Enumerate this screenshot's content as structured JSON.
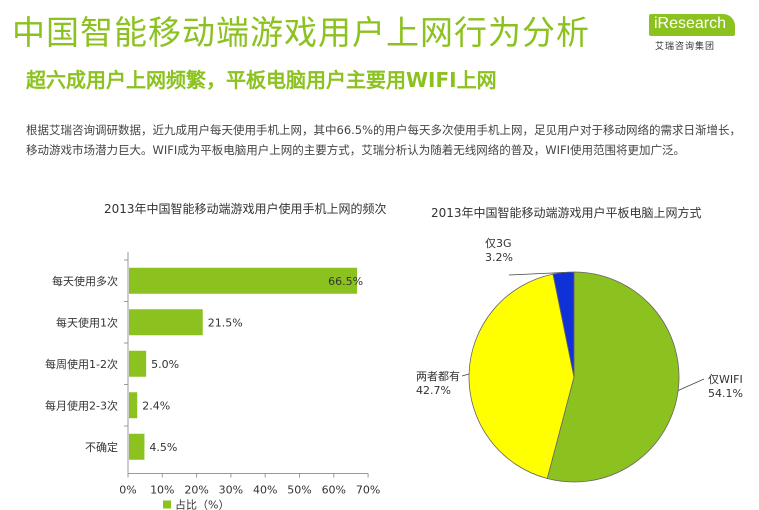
{
  "header": {
    "title": "中国智能移动端游戏用户上网行为分析",
    "subtitle": "超六成用户上网频繁，平板电脑用户主要用WIFI上网",
    "logo_text": "iResearch",
    "logo_sub": "艾瑞咨询集团"
  },
  "description": "根据艾瑞咨询调研数据，近九成用户每天使用手机上网，其中66.5%的用户每天多次使用手机上网，足见用户对于移动网络的需求日渐增长，移动游戏市场潜力巨大。WIFI成为平板电脑用户上网的主要方式，艾瑞分析认为随着无线网络的普及，WIFI使用范围将更加广泛。",
  "colors": {
    "accent": "#8cc21f",
    "yellow": "#ffff00",
    "blue": "#1030d8"
  },
  "chart_data": [
    {
      "type": "bar",
      "orientation": "horizontal",
      "title": "2013年中国智能移动端游戏用户使用手机上网的频次",
      "categories": [
        "每天使用多次",
        "每天使用1次",
        "每周使用1-2次",
        "每月使用2-3次",
        "不确定"
      ],
      "values": [
        66.5,
        21.5,
        5.0,
        2.4,
        4.5
      ],
      "value_labels": [
        "66.5%",
        "21.5%",
        "5.0%",
        "2.4%",
        "4.5%"
      ],
      "xlim": [
        0,
        70
      ],
      "xticks": [
        "0%",
        "10%",
        "20%",
        "30%",
        "40%",
        "50%",
        "60%",
        "70%"
      ],
      "legend": "占比（%）",
      "legend_position": "bottom",
      "color": "#8cc21f"
    },
    {
      "type": "pie",
      "title": "2013年中国智能移动端游戏用户平板电脑上网方式",
      "slices": [
        {
          "label": "仅WIFI",
          "value": 54.1,
          "value_label": "54.1%",
          "color": "#8cc21f"
        },
        {
          "label": "两者都有",
          "value": 42.7,
          "value_label": "42.7%",
          "color": "#ffff00"
        },
        {
          "label": "仅3G",
          "value": 3.2,
          "value_label": "3.2%",
          "color": "#1030d8"
        }
      ]
    }
  ]
}
